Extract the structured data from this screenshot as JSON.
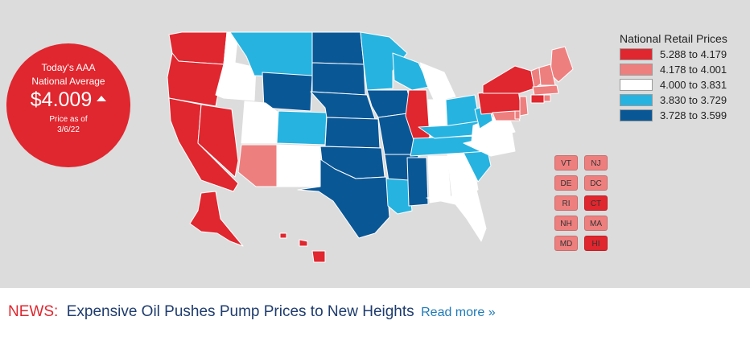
{
  "badge": {
    "title_line1": "Today's AAA",
    "title_line2": "National Average",
    "value": "$4.009",
    "trend": "up",
    "asof_line1": "Price as of",
    "asof_line2": "3/6/22"
  },
  "legend": {
    "title": "National Retail Prices",
    "items": [
      {
        "label": "5.288 to 4.179",
        "color": "#e0262e"
      },
      {
        "label": "4.178 to 4.001",
        "color": "#ee7f7f"
      },
      {
        "label": "4.000 to 3.831",
        "color": "#ffffff"
      },
      {
        "label": "3.830 to 3.729",
        "color": "#27b3e0"
      },
      {
        "label": "3.728 to 3.599",
        "color": "#0a5796"
      }
    ]
  },
  "small_states": [
    {
      "label": "VT",
      "color": "#ee7f7f"
    },
    {
      "label": "NJ",
      "color": "#ee7f7f"
    },
    {
      "label": "DE",
      "color": "#ee7f7f"
    },
    {
      "label": "DC",
      "color": "#ee7f7f"
    },
    {
      "label": "RI",
      "color": "#ee7f7f"
    },
    {
      "label": "CT",
      "color": "#e0262e"
    },
    {
      "label": "NH",
      "color": "#ee7f7f"
    },
    {
      "label": "MA",
      "color": "#ee7f7f"
    },
    {
      "label": "MD",
      "color": "#ee7f7f"
    },
    {
      "label": "HI",
      "color": "#e0262e"
    }
  ],
  "news": {
    "label": "NEWS:",
    "headline": "Expensive Oil Pushes Pump Prices to New Heights",
    "read_more": "Read more »"
  }
}
